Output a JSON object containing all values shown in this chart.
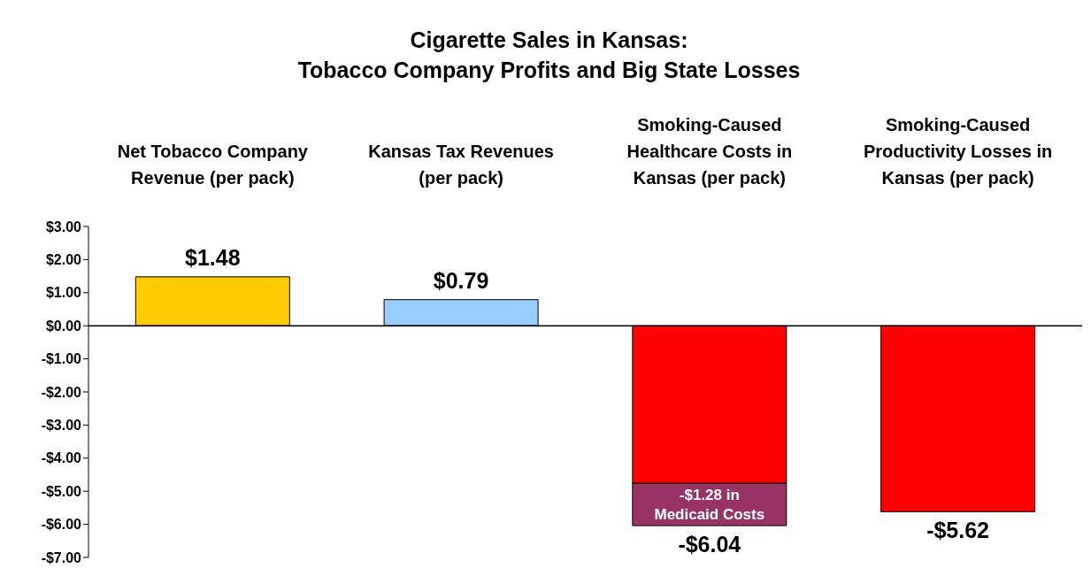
{
  "chart_data": {
    "type": "bar",
    "title": "Cigarette Sales in Kansas: Tobacco Company Profits and Big State Losses",
    "categories": [
      "Net Tobacco Company Revenue (per pack)",
      "Kansas Tax Revenues (per pack)",
      "Smoking-Caused Healthcare Costs in Kansas (per pack)",
      "Smoking-Caused Productivity Losses in Kansas (per pack)"
    ],
    "stacked": true,
    "series": [
      {
        "colors": [
          "#ffcc00",
          "#99ccff",
          "#ff0000",
          "#ff0000"
        ],
        "values": [
          1.48,
          0.79,
          -4.76,
          -5.62
        ]
      },
      {
        "color": "#993366",
        "values": [
          null,
          null,
          -1.28,
          null
        ],
        "value_labels": [
          null,
          null,
          "-$1.28 in Medicaid Costs",
          null
        ]
      }
    ],
    "totals": [
      "$1.48",
      "$0.79",
      "-$6.04",
      "-$5.62"
    ],
    "ylim": [
      -7,
      3
    ],
    "yticks": [
      {
        "value": 3,
        "label": "$3.00"
      },
      {
        "value": 2,
        "label": "$2.00"
      },
      {
        "value": 1,
        "label": "$1.00"
      },
      {
        "value": 0,
        "label": "$0.00"
      },
      {
        "value": -1,
        "label": "-$1.00"
      },
      {
        "value": -2,
        "label": "-$2.00"
      },
      {
        "value": -3,
        "label": "-$3.00"
      },
      {
        "value": -4,
        "label": "-$4.00"
      },
      {
        "value": -5,
        "label": "-$5.00"
      },
      {
        "value": -6,
        "label": "-$6.00"
      },
      {
        "value": -7,
        "label": "-$7.00"
      }
    ],
    "legend": false
  }
}
